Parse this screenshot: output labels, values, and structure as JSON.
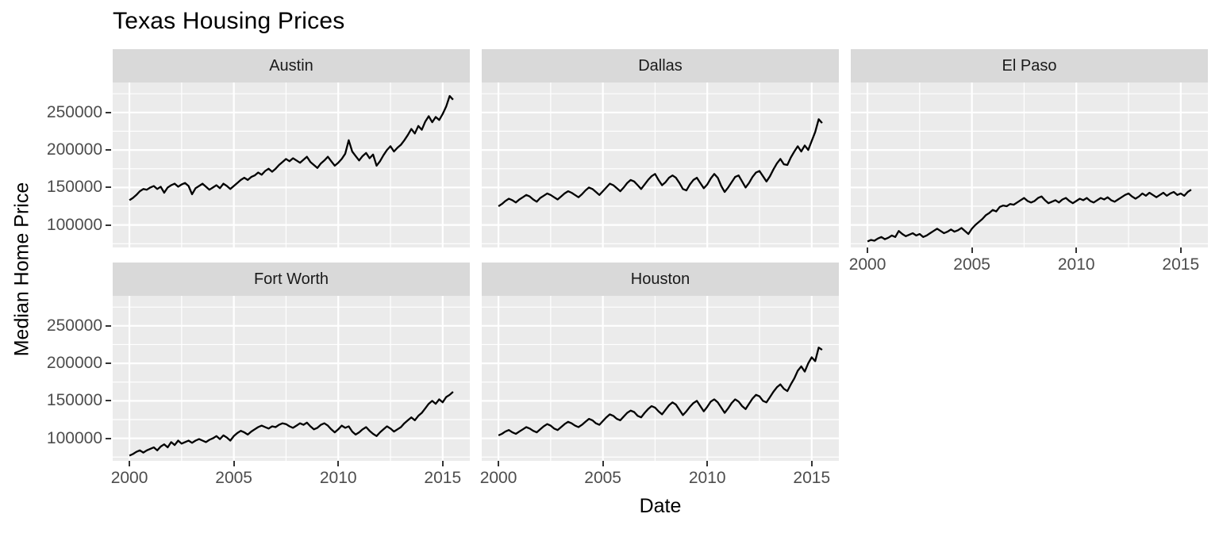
{
  "title": "Texas Housing Prices",
  "chart_data": {
    "type": "line",
    "title": "Texas Housing Prices",
    "xlabel": "Date",
    "ylabel": "Median Home Price",
    "facet_titles": [
      "Austin",
      "Dallas",
      "El Paso",
      "Fort Worth",
      "Houston"
    ],
    "x_start": 2000.0,
    "x_step": 0.166667,
    "xlim": [
      1999.2,
      2016.3
    ],
    "ylim": [
      70000,
      290000
    ],
    "x_ticks": {
      "values": [
        2000,
        2005,
        2010,
        2015
      ],
      "labels": [
        "2000",
        "2005",
        "2010",
        "2015"
      ]
    },
    "x_minor": [
      2002.5,
      2007.5,
      2012.5
    ],
    "y_ticks": {
      "values": [
        250000,
        200000,
        150000,
        100000
      ],
      "labels": [
        "250000",
        "200000",
        "150000",
        "100000"
      ]
    },
    "y_minor": [
      75000,
      125000,
      175000,
      225000,
      275000
    ],
    "colors": {
      "line": "#000000",
      "panel_bg": "#ebebeb",
      "strip_bg": "#d9d9d9",
      "grid": "#ffffff",
      "axis_text": "#4d4d4d",
      "tick_mark": "#333333"
    },
    "series": [
      {
        "name": "Austin",
        "values": [
          133000,
          136000,
          140000,
          145000,
          148000,
          147000,
          150000,
          152000,
          148000,
          151000,
          143000,
          150000,
          153000,
          155000,
          151000,
          154000,
          156000,
          152000,
          141000,
          149000,
          152000,
          155000,
          151000,
          147000,
          150000,
          153000,
          149000,
          155000,
          152000,
          148000,
          152000,
          156000,
          160000,
          163000,
          160000,
          164000,
          166000,
          170000,
          167000,
          172000,
          175000,
          171000,
          175000,
          180000,
          184000,
          188000,
          185000,
          189000,
          186000,
          183000,
          187000,
          191000,
          184000,
          180000,
          176000,
          182000,
          186000,
          191000,
          185000,
          179000,
          183000,
          188000,
          195000,
          213000,
          198000,
          192000,
          186000,
          192000,
          196000,
          189000,
          194000,
          179000,
          185000,
          193000,
          200000,
          205000,
          198000,
          203000,
          207000,
          213000,
          220000,
          228000,
          222000,
          232000,
          227000,
          238000,
          245000,
          237000,
          244000,
          240000,
          248000,
          258000,
          272000,
          267000
        ]
      },
      {
        "name": "Dallas",
        "values": [
          125000,
          128000,
          132000,
          135000,
          133000,
          130000,
          134000,
          137000,
          140000,
          138000,
          134000,
          131000,
          136000,
          139000,
          142000,
          140000,
          137000,
          134000,
          138000,
          142000,
          145000,
          143000,
          140000,
          137000,
          141000,
          146000,
          150000,
          148000,
          144000,
          140000,
          145000,
          150000,
          155000,
          153000,
          149000,
          145000,
          150000,
          156000,
          160000,
          158000,
          153000,
          148000,
          154000,
          160000,
          165000,
          168000,
          160000,
          153000,
          157000,
          163000,
          166000,
          163000,
          156000,
          148000,
          146000,
          154000,
          160000,
          163000,
          156000,
          149000,
          154000,
          162000,
          168000,
          163000,
          152000,
          144000,
          150000,
          157000,
          164000,
          166000,
          158000,
          150000,
          156000,
          164000,
          170000,
          172000,
          165000,
          158000,
          165000,
          174000,
          182000,
          188000,
          181000,
          180000,
          190000,
          198000,
          205000,
          198000,
          206000,
          200000,
          212000,
          224000,
          241000,
          236000
        ]
      },
      {
        "name": "El Paso",
        "values": [
          78000,
          80000,
          79000,
          82000,
          84000,
          81000,
          83000,
          86000,
          84000,
          92000,
          88000,
          85000,
          87000,
          89000,
          86000,
          88000,
          84000,
          86000,
          89000,
          92000,
          95000,
          92000,
          89000,
          91000,
          94000,
          91000,
          93000,
          96000,
          92000,
          88000,
          95000,
          100000,
          104000,
          108000,
          113000,
          116000,
          120000,
          118000,
          124000,
          126000,
          125000,
          128000,
          127000,
          130000,
          133000,
          136000,
          132000,
          130000,
          132000,
          136000,
          138000,
          133000,
          129000,
          131000,
          133000,
          130000,
          134000,
          136000,
          132000,
          129000,
          132000,
          135000,
          133000,
          136000,
          132000,
          130000,
          133000,
          136000,
          134000,
          137000,
          133000,
          131000,
          134000,
          137000,
          140000,
          142000,
          138000,
          135000,
          138000,
          142000,
          139000,
          143000,
          140000,
          137000,
          140000,
          143000,
          139000,
          142000,
          144000,
          140000,
          142000,
          139000,
          144000,
          147000
        ]
      },
      {
        "name": "Fort Worth",
        "values": [
          77000,
          79000,
          82000,
          84000,
          81000,
          84000,
          86000,
          88000,
          84000,
          89000,
          92000,
          88000,
          95000,
          91000,
          97000,
          93000,
          95000,
          97000,
          94000,
          97000,
          99000,
          97000,
          95000,
          98000,
          100000,
          103000,
          99000,
          104000,
          101000,
          97000,
          103000,
          107000,
          110000,
          108000,
          105000,
          109000,
          112000,
          115000,
          117000,
          115000,
          113000,
          116000,
          115000,
          118000,
          120000,
          119000,
          116000,
          114000,
          117000,
          120000,
          118000,
          121000,
          116000,
          112000,
          114000,
          118000,
          120000,
          117000,
          112000,
          108000,
          112000,
          117000,
          114000,
          116000,
          109000,
          105000,
          108000,
          112000,
          115000,
          110000,
          106000,
          103000,
          108000,
          112000,
          116000,
          113000,
          109000,
          112000,
          115000,
          120000,
          124000,
          128000,
          124000,
          130000,
          134000,
          140000,
          146000,
          150000,
          146000,
          152000,
          148000,
          155000,
          158000,
          162000
        ]
      },
      {
        "name": "Houston",
        "values": [
          104000,
          106000,
          109000,
          111000,
          108000,
          106000,
          109000,
          112000,
          115000,
          113000,
          110000,
          108000,
          112000,
          116000,
          119000,
          117000,
          113000,
          111000,
          115000,
          119000,
          122000,
          120000,
          117000,
          115000,
          118000,
          122000,
          126000,
          124000,
          120000,
          118000,
          123000,
          128000,
          132000,
          130000,
          126000,
          124000,
          129000,
          134000,
          137000,
          135000,
          130000,
          128000,
          134000,
          139000,
          143000,
          141000,
          136000,
          132000,
          138000,
          144000,
          148000,
          145000,
          138000,
          131000,
          136000,
          142000,
          147000,
          150000,
          143000,
          136000,
          142000,
          149000,
          152000,
          148000,
          141000,
          134000,
          140000,
          147000,
          152000,
          149000,
          143000,
          139000,
          146000,
          153000,
          158000,
          156000,
          150000,
          148000,
          155000,
          162000,
          168000,
          172000,
          166000,
          163000,
          172000,
          180000,
          190000,
          196000,
          189000,
          200000,
          208000,
          203000,
          221000,
          218000
        ]
      }
    ]
  }
}
